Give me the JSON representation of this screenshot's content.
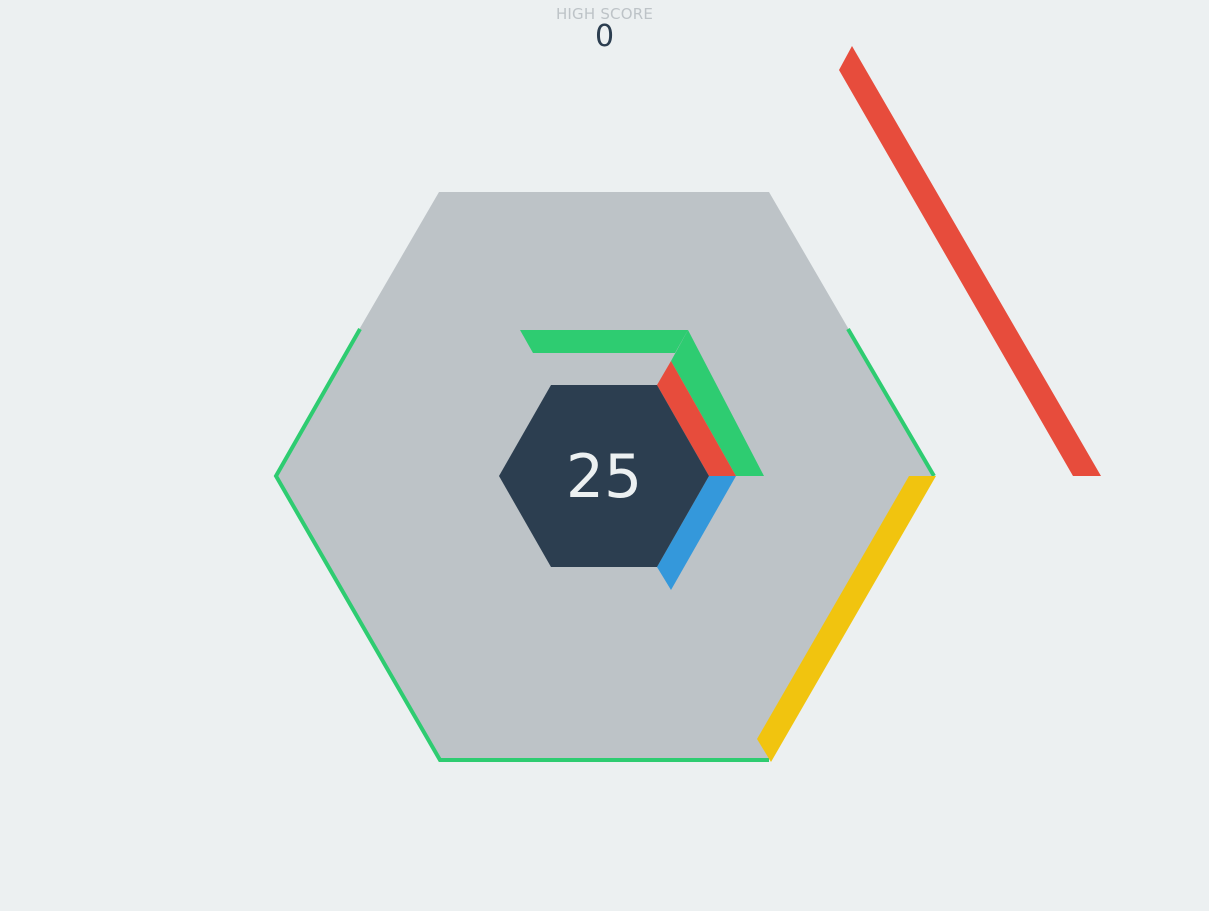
{
  "hud": {
    "high_score_label": "HIGH SCORE",
    "high_score_value": "0"
  },
  "game": {
    "score": "25",
    "colors": {
      "background": "#ecf0f1",
      "outer_hex": "#bdc3c7",
      "center_hex": "#2c3e50",
      "score_text": "#ecf0f1",
      "green": "#2ecc71",
      "red": "#e74c3c",
      "blue": "#3498db",
      "yellow": "#f1c40f"
    },
    "outline_color": "green",
    "stacked_blocks": [
      {
        "side": "upper",
        "layer": 1,
        "color": "green"
      },
      {
        "side": "upper-right",
        "layer": 1,
        "color": "red"
      },
      {
        "side": "upper-right",
        "layer": 2,
        "color": "green"
      },
      {
        "side": "lower-right",
        "layer": 1,
        "color": "blue"
      }
    ],
    "incoming_blocks": [
      {
        "side": "lower-right",
        "color": "yellow"
      },
      {
        "side": "upper-right",
        "color": "red"
      }
    ]
  }
}
